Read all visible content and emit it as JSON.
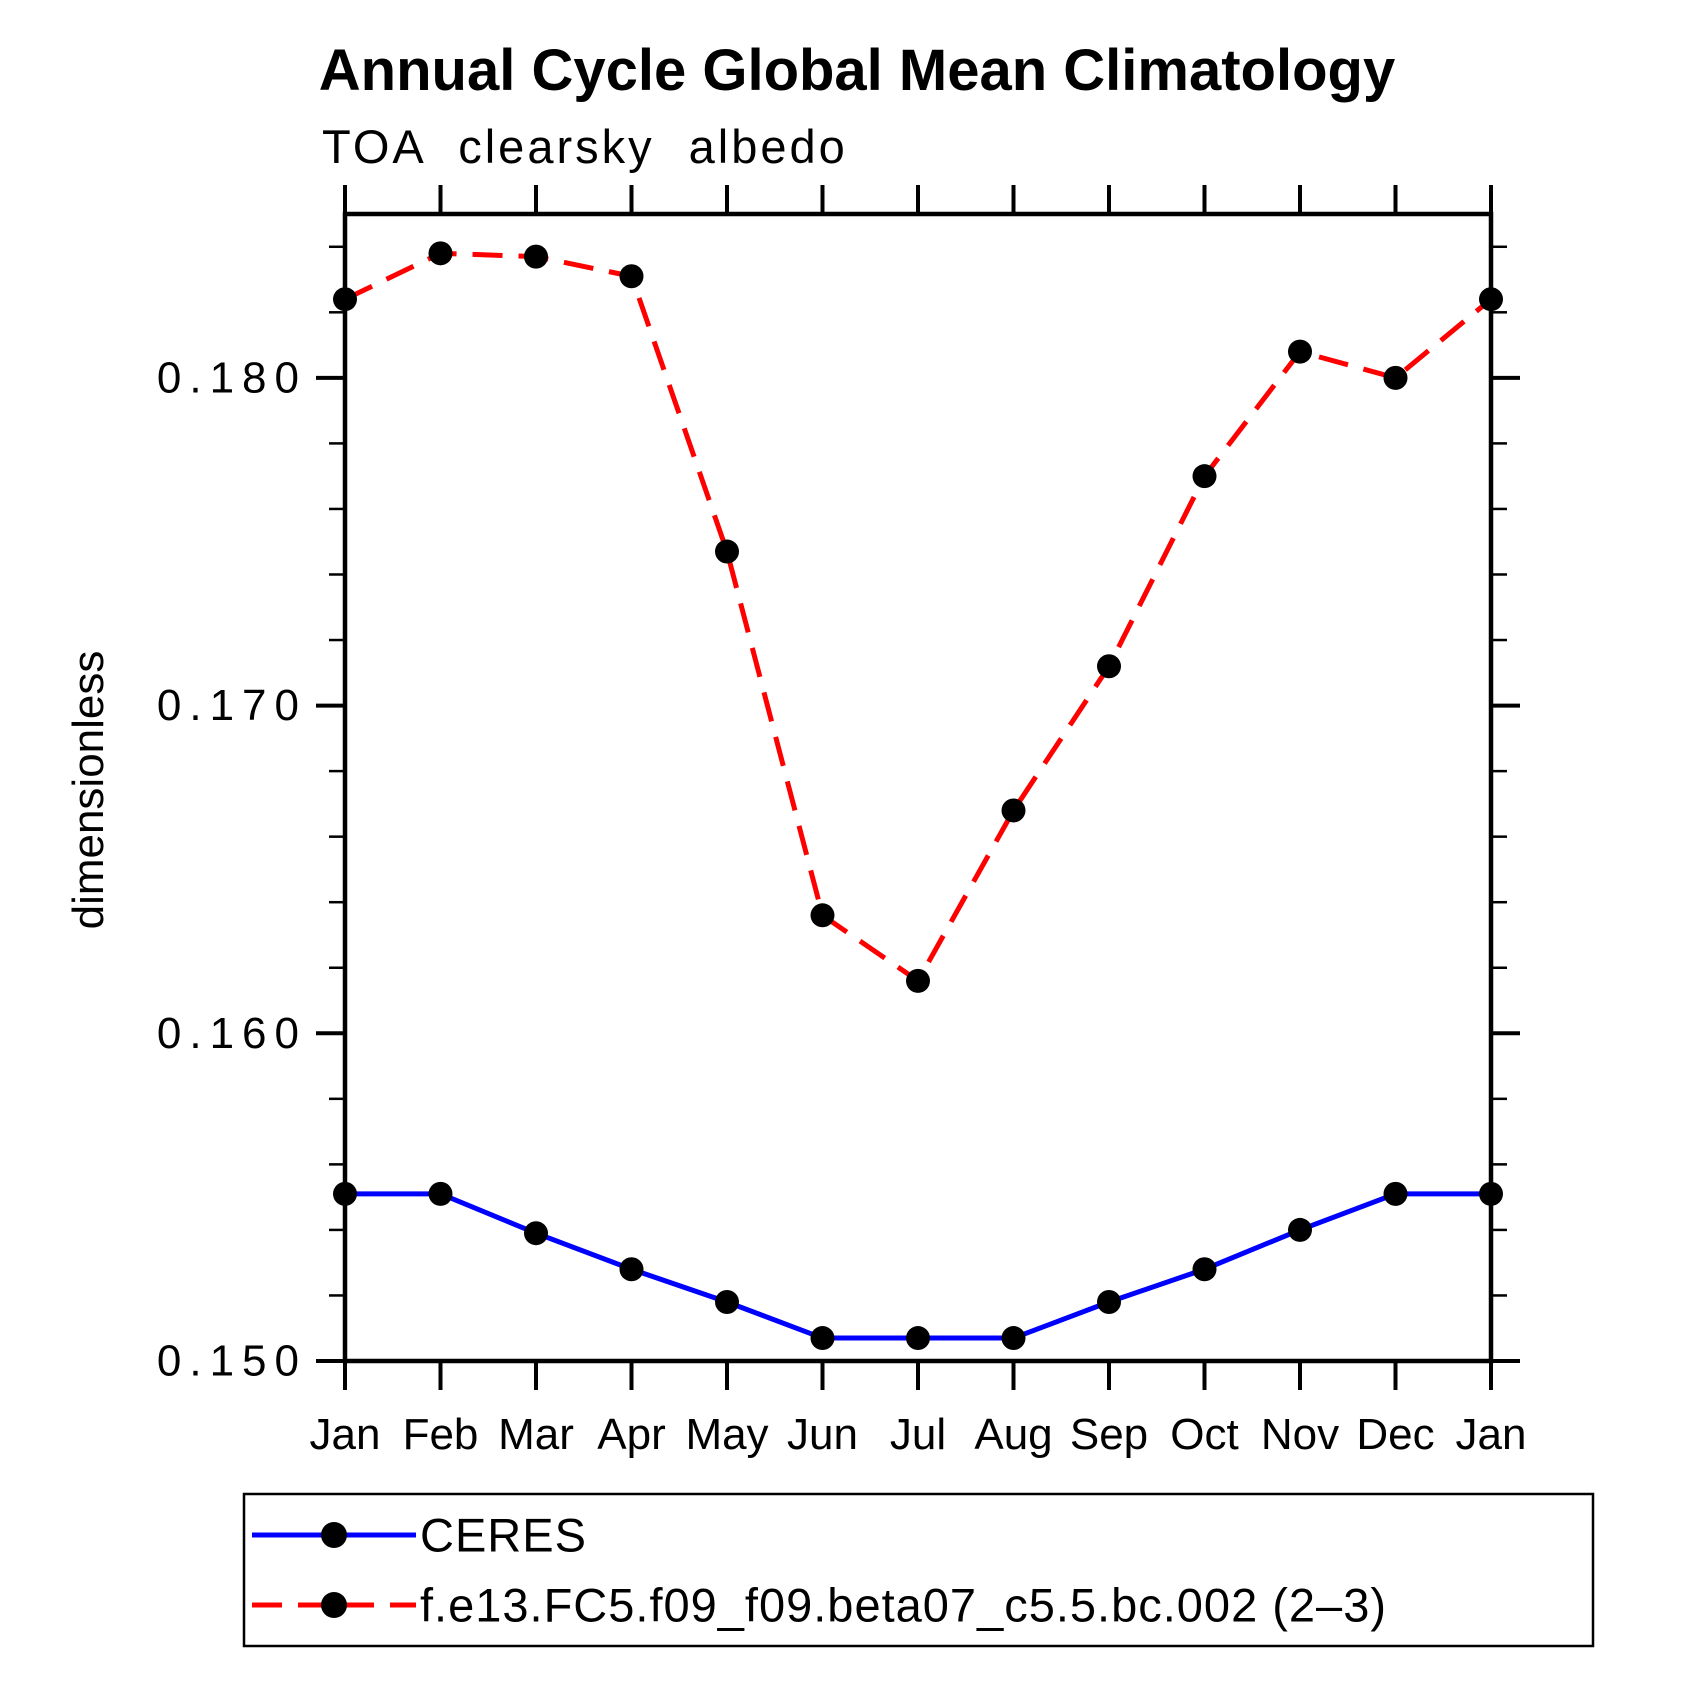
{
  "title": "Annual Cycle Global Mean Climatology",
  "subtitle": "TOA clearsky albedo",
  "chart_data": {
    "type": "line",
    "title": "Annual Cycle Global Mean Climatology",
    "subtitle": "TOA clearsky albedo",
    "xlabel": "",
    "ylabel": "dimensionless",
    "categories": [
      "Jan",
      "Feb",
      "Mar",
      "Apr",
      "May",
      "Jun",
      "Jul",
      "Aug",
      "Sep",
      "Oct",
      "Nov",
      "Dec",
      "Jan"
    ],
    "ylim": [
      0.15,
      0.185
    ],
    "ytick_major_values": [
      0.15,
      0.16,
      0.17,
      0.18
    ],
    "ytick_major_labels": [
      "0.150",
      "0.160",
      "0.170",
      "0.180"
    ],
    "ytick_minor_step": 0.002,
    "grid": false,
    "legend_position": "bottom",
    "series": [
      {
        "name": "CERES",
        "color": "#0000ff",
        "line_style": "solid",
        "marker": "circle",
        "marker_color": "#000000",
        "values": [
          0.1551,
          0.1551,
          0.1539,
          0.1528,
          0.1518,
          0.1507,
          0.1507,
          0.1507,
          0.1518,
          0.1528,
          0.154,
          0.1551,
          0.1551
        ]
      },
      {
        "name": "f.e13.FC5.f09_f09.beta07_c5.5.bc.002 (2–3)",
        "color": "#ff0000",
        "line_style": "dashed",
        "marker": "circle",
        "marker_color": "#000000",
        "values": [
          0.1824,
          0.1838,
          0.1837,
          0.1831,
          0.1747,
          0.1636,
          0.1616,
          0.1668,
          0.1712,
          0.177,
          0.1808,
          0.18,
          0.1824
        ]
      }
    ]
  },
  "colors": {
    "background": "#ffffff",
    "axis": "#000000",
    "ceres_blue": "#0000ff",
    "model_red": "#ff0000",
    "marker_black": "#000000"
  }
}
